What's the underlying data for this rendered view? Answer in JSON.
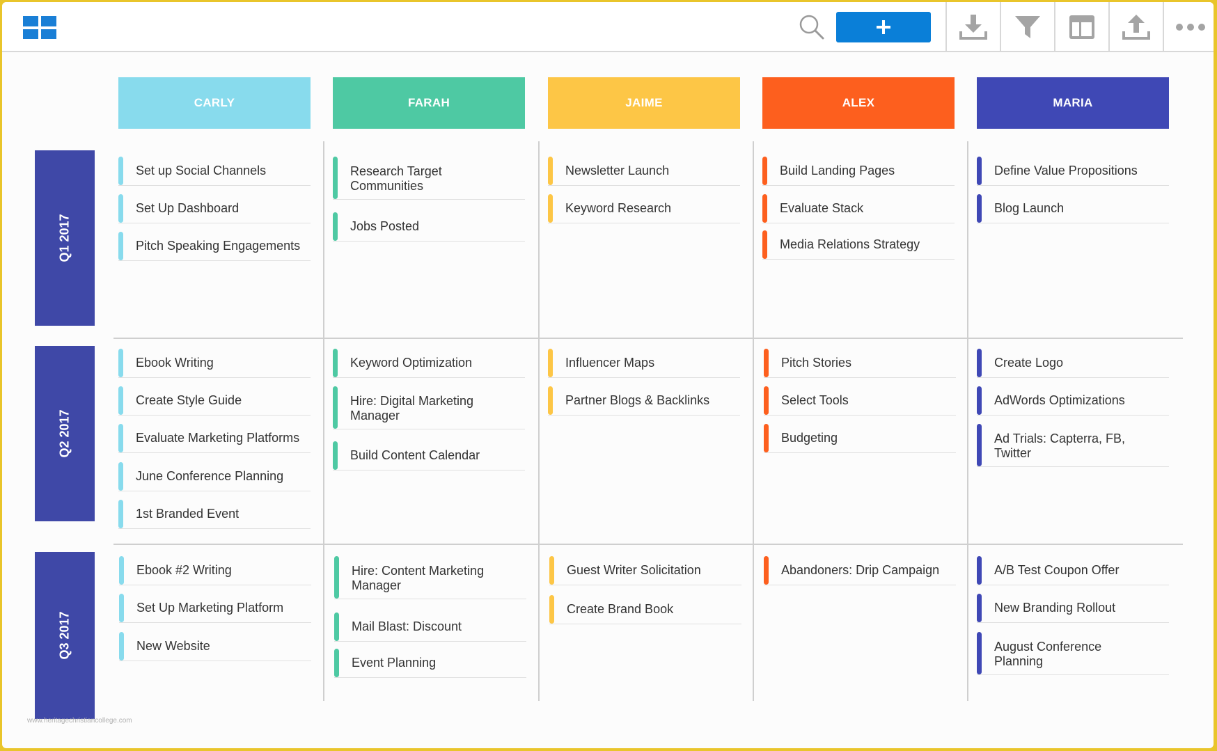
{
  "toolbar": {
    "logo_icon": "grid-logo-icon",
    "search_icon": "search-icon",
    "add_icon": "plus-icon",
    "tools": [
      "download-icon",
      "filter-icon",
      "layout-icon",
      "upload-icon",
      "more-icon"
    ]
  },
  "colors": {
    "carly": "#88dbed",
    "farah": "#4ec9a3",
    "jaime": "#fdc646",
    "alex": "#fd5f1e",
    "maria": "#3f48b5",
    "quarter": "#3f48a7",
    "accent": "#0a7fd8"
  },
  "columns": [
    "CARLY",
    "FARAH",
    "JAIME",
    "ALEX",
    "MARIA"
  ],
  "quarters": [
    "Q1 2017",
    "Q2 2017",
    "Q3 2017"
  ],
  "tasks": {
    "q1": {
      "carly": [
        "Set up Social Channels",
        "Set Up Dashboard",
        "Pitch Speaking Engagements"
      ],
      "farah": [
        "Research Target Communities",
        "Jobs Posted"
      ],
      "jaime": [
        "Newsletter Launch",
        "Keyword Research"
      ],
      "alex": [
        "Build Landing Pages",
        "Evaluate Stack",
        "Media Relations Strategy"
      ],
      "maria": [
        "Define Value Propositions",
        "Blog Launch"
      ]
    },
    "q2": {
      "carly": [
        "Ebook Writing",
        "Create Style Guide",
        "Evaluate Marketing Platforms",
        "June Conference Planning",
        "1st Branded Event"
      ],
      "farah": [
        "Keyword Optimization",
        "Hire: Digital Marketing Manager",
        "Build Content Calendar"
      ],
      "jaime": [
        "Influencer Maps",
        "Partner Blogs & Backlinks"
      ],
      "alex": [
        "Pitch Stories",
        "Select Tools",
        "Budgeting"
      ],
      "maria": [
        "Create Logo",
        "AdWords Optimizations",
        "Ad Trials: Capterra, FB, Twitter"
      ]
    },
    "q3": {
      "carly": [
        "Ebook #2 Writing",
        "Set Up Marketing Platform",
        "New Website"
      ],
      "farah": [
        "Hire: Content Marketing Manager",
        "Mail Blast: Discount",
        "Event Planning"
      ],
      "jaime": [
        "Guest Writer Solicitation",
        "Create Brand Book"
      ],
      "alex": [
        "Abandoners: Drip Campaign"
      ],
      "maria": [
        "A/B Test Coupon Offer",
        "New Branding Rollout",
        "August Conference Planning"
      ]
    }
  },
  "watermark": "www.heritagechristiancollege.com"
}
